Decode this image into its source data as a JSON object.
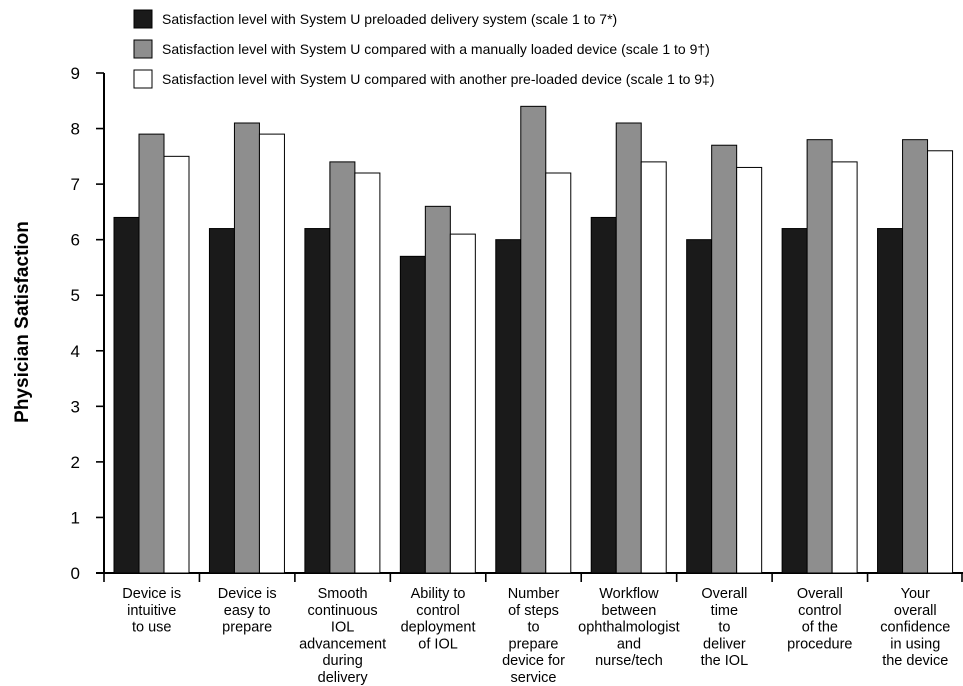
{
  "chart_data": {
    "type": "bar",
    "ylabel": "Physician Satisfaction",
    "xlabel": "",
    "ylim": [
      0,
      9
    ],
    "yticks": [
      0,
      1,
      2,
      3,
      4,
      5,
      6,
      7,
      8,
      9
    ],
    "grid": false,
    "legend_position": "top",
    "categories": [
      [
        "Device is",
        "intuitive",
        "to use"
      ],
      [
        "Device is",
        "easy to",
        "prepare"
      ],
      [
        "Smooth",
        "continuous",
        "IOL",
        "advancement",
        "during",
        "delivery"
      ],
      [
        "Ability to",
        "control",
        "deployment",
        "of IOL"
      ],
      [
        "Number",
        "of steps",
        "to",
        "prepare",
        "device for",
        "service"
      ],
      [
        "Workflow",
        "between",
        "ophthalmologist",
        "and",
        "nurse/tech"
      ],
      [
        "Overall",
        "time",
        "to",
        "deliver",
        "the IOL"
      ],
      [
        "Overall",
        "control",
        "of the",
        "procedure"
      ],
      [
        "Your",
        "overall",
        "confidence",
        "in using",
        "the device"
      ]
    ],
    "series": [
      {
        "name": "Satisfaction level with System U preloaded delivery system (scale 1 to 7*)",
        "color": "#1a1a1a",
        "values": [
          6.4,
          6.2,
          6.2,
          5.7,
          6.0,
          6.4,
          6.0,
          6.2,
          6.2
        ]
      },
      {
        "name": "Satisfaction level with System U compared with a manually loaded device (scale 1 to 9†)",
        "color": "#8e8e8e",
        "values": [
          7.9,
          8.1,
          7.4,
          6.6,
          8.4,
          8.1,
          7.7,
          7.8,
          7.8
        ]
      },
      {
        "name": "Satisfaction level with System U compared with another pre-loaded device (scale 1 to 9‡)",
        "color": "#ffffff",
        "values": [
          7.5,
          7.9,
          7.2,
          6.1,
          7.2,
          7.4,
          7.3,
          7.4,
          7.6
        ]
      }
    ]
  }
}
